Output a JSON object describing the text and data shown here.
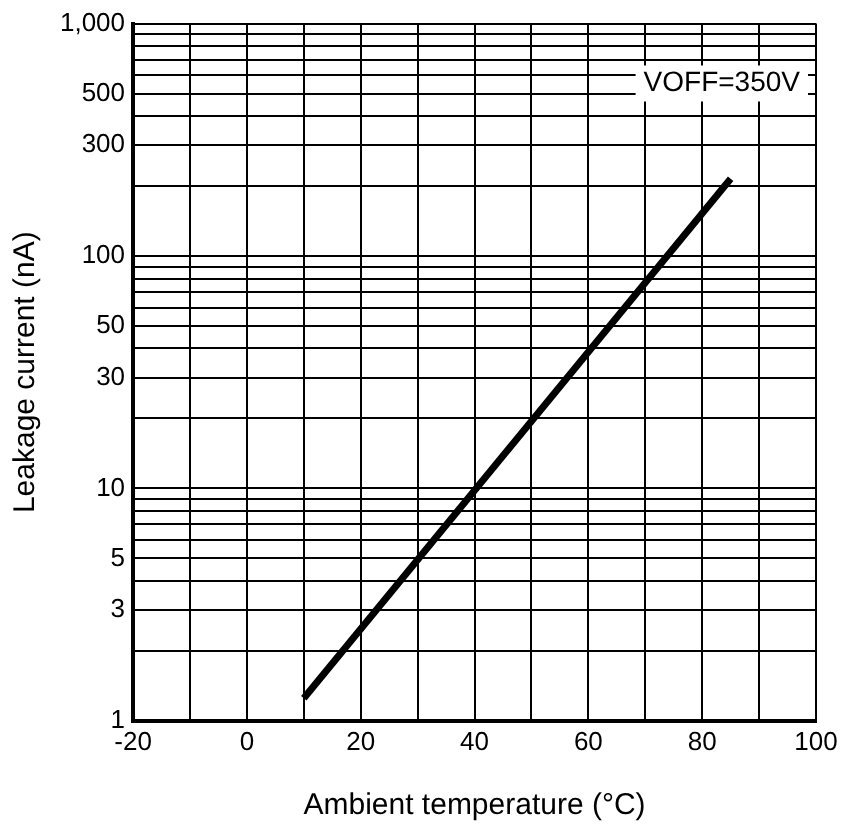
{
  "chart_data": {
    "type": "line",
    "xlabel": "Ambient temperature (°C)",
    "ylabel": "Leakage current (nA)",
    "annotations": [
      "VOFF=350V"
    ],
    "series": [
      {
        "color": "#000000",
        "x": [
          10,
          85
        ],
        "values": [
          1.25,
          215
        ]
      }
    ],
    "xlim": [
      -20,
      100
    ],
    "xticks": [
      -20,
      {
        "value": -10,
        "label": null
      },
      0,
      {
        "value": 10,
        "label": null
      },
      20,
      {
        "value": 30,
        "label": null
      },
      40,
      {
        "value": 50,
        "label": null
      },
      60,
      {
        "value": 70,
        "label": null
      },
      80,
      {
        "value": 90,
        "label": null
      },
      100
    ],
    "ylim": [
      1,
      1000
    ],
    "yticks": [
      1,
      {
        "value": 2,
        "label": null
      },
      3,
      {
        "value": 4,
        "label": null
      },
      5,
      {
        "value": 6,
        "label": null
      },
      {
        "value": 7,
        "label": null
      },
      {
        "value": 8,
        "label": null
      },
      {
        "value": 9,
        "label": null
      },
      10,
      {
        "value": 20,
        "label": null
      },
      30,
      {
        "value": 40,
        "label": null
      },
      50,
      {
        "value": 60,
        "label": null
      },
      {
        "value": 70,
        "label": null
      },
      {
        "value": 80,
        "label": null
      },
      {
        "value": 90,
        "label": null
      },
      100,
      {
        "value": 200,
        "label": null
      },
      300,
      {
        "value": 400,
        "label": null
      },
      500,
      {
        "value": 600,
        "label": null
      },
      {
        "value": 700,
        "label": null
      },
      {
        "value": 800,
        "label": null
      },
      {
        "value": 900,
        "label": null
      },
      {
        "value": 1000,
        "label": "1,000"
      }
    ],
    "log": true,
    "grid": true,
    "legend": false,
    "marker": "none",
    "line_style": "solid"
  }
}
